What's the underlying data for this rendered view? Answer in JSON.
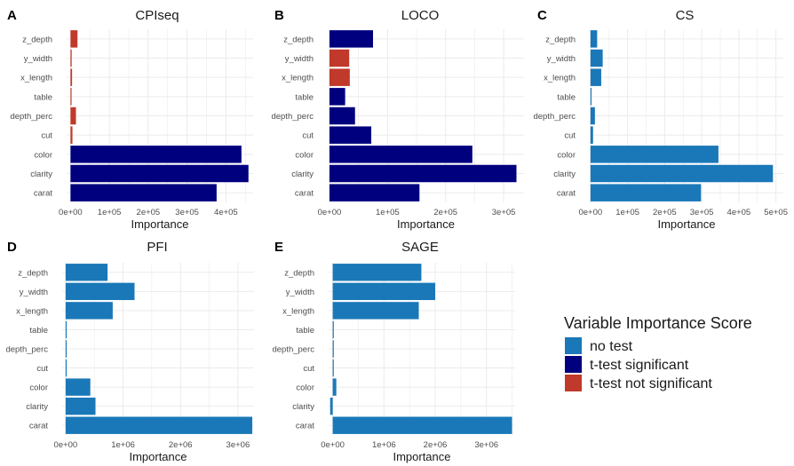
{
  "colors": {
    "no_test": "#1a78b8",
    "t_test_significant": "#00007e",
    "t_test_not_significant": "#c0392b",
    "grid": "#ebebeb",
    "text": "#4d4d4d"
  },
  "legend": {
    "title": "Variable Importance Score",
    "items": [
      {
        "label": "no test",
        "color_key": "no_test"
      },
      {
        "label": "t-test significant",
        "color_key": "t_test_significant"
      },
      {
        "label": "t-test not significant",
        "color_key": "t_test_not_significant"
      }
    ]
  },
  "chart_data": [
    {
      "type": "bar",
      "orientation": "horizontal",
      "panel_letter": "A",
      "title": "CPIseq",
      "xlabel": "Importance",
      "ylabel": "",
      "categories": [
        "z_depth",
        "y_width",
        "x_length",
        "table",
        "depth_perc",
        "cut",
        "color",
        "clarity",
        "carat"
      ],
      "values": [
        18000,
        3000,
        4000,
        2000,
        14000,
        5000,
        440000,
        458000,
        376000
      ],
      "status": [
        "t_test_not_significant",
        "t_test_not_significant",
        "t_test_not_significant",
        "t_test_not_significant",
        "t_test_not_significant",
        "t_test_not_significant",
        "t_test_significant",
        "t_test_significant",
        "t_test_significant"
      ],
      "xlim": [
        -10000,
        470000
      ],
      "x_ticks": [
        0,
        100000,
        200000,
        300000,
        400000
      ],
      "x_tick_labels": [
        "0e+00",
        "1e+05",
        "2e+05",
        "3e+05",
        "4e+05"
      ],
      "grid": true
    },
    {
      "type": "bar",
      "orientation": "horizontal",
      "panel_letter": "B",
      "title": "LOCO",
      "xlabel": "Importance",
      "ylabel": "",
      "categories": [
        "z_depth",
        "y_width",
        "x_length",
        "table",
        "depth_perc",
        "cut",
        "color",
        "clarity",
        "carat"
      ],
      "values": [
        75000,
        34000,
        35000,
        27000,
        44000,
        72000,
        246000,
        322000,
        155000
      ],
      "status": [
        "t_test_significant",
        "t_test_not_significant",
        "t_test_not_significant",
        "t_test_significant",
        "t_test_significant",
        "t_test_significant",
        "t_test_significant",
        "t_test_significant",
        "t_test_significant"
      ],
      "xlim": [
        -3000,
        335000
      ],
      "x_ticks": [
        0,
        100000,
        200000,
        300000
      ],
      "x_tick_labels": [
        "0e+00",
        "1e+05",
        "2e+05",
        "3e+05"
      ],
      "grid": true
    },
    {
      "type": "bar",
      "orientation": "horizontal",
      "panel_letter": "C",
      "title": "CS",
      "xlabel": "Importance",
      "ylabel": "",
      "categories": [
        "z_depth",
        "y_width",
        "x_length",
        "table",
        "depth_perc",
        "cut",
        "color",
        "clarity",
        "carat"
      ],
      "values": [
        18000,
        33000,
        29000,
        2000,
        12000,
        7000,
        345000,
        492000,
        298000
      ],
      "status": [
        "no_test",
        "no_test",
        "no_test",
        "no_test",
        "no_test",
        "no_test",
        "no_test",
        "no_test",
        "no_test"
      ],
      "xlim": [
        -2000,
        520000
      ],
      "x_ticks": [
        0,
        100000,
        200000,
        300000,
        400000,
        500000
      ],
      "x_tick_labels": [
        "0e+00",
        "1e+05",
        "2e+05",
        "3e+05",
        "4e+05",
        "5e+05"
      ],
      "grid": true
    },
    {
      "type": "bar",
      "orientation": "horizontal",
      "panel_letter": "D",
      "title": "PFI",
      "xlabel": "Importance",
      "ylabel": "",
      "categories": [
        "z_depth",
        "y_width",
        "x_length",
        "table",
        "depth_perc",
        "cut",
        "color",
        "clarity",
        "carat"
      ],
      "values": [
        730000,
        1200000,
        820000,
        15000,
        15000,
        15000,
        430000,
        520000,
        3250000
      ],
      "status": [
        "no_test",
        "no_test",
        "no_test",
        "no_test",
        "no_test",
        "no_test",
        "no_test",
        "no_test",
        "no_test"
      ],
      "xlim": [
        -60000,
        3280000
      ],
      "x_ticks": [
        0,
        1000000,
        2000000,
        3000000
      ],
      "x_tick_labels": [
        "0e+00",
        "1e+06",
        "2e+06",
        "3e+06"
      ],
      "grid": true
    },
    {
      "type": "bar",
      "orientation": "horizontal",
      "panel_letter": "E",
      "title": "SAGE",
      "xlabel": "Importance",
      "ylabel": "",
      "categories": [
        "z_depth",
        "y_width",
        "x_length",
        "table",
        "depth_perc",
        "cut",
        "color",
        "clarity",
        "carat"
      ],
      "values": [
        1730000,
        2000000,
        1680000,
        10000,
        10000,
        10000,
        70000,
        -50000,
        3500000
      ],
      "status": [
        "no_test",
        "no_test",
        "no_test",
        "no_test",
        "no_test",
        "no_test",
        "no_test",
        "no_test",
        "no_test"
      ],
      "xlim": [
        -80000,
        3560000
      ],
      "x_ticks": [
        0,
        1000000,
        2000000,
        3000000
      ],
      "x_tick_labels": [
        "0e+00",
        "1e+06",
        "2e+06",
        "3e+06"
      ],
      "grid": true
    }
  ]
}
